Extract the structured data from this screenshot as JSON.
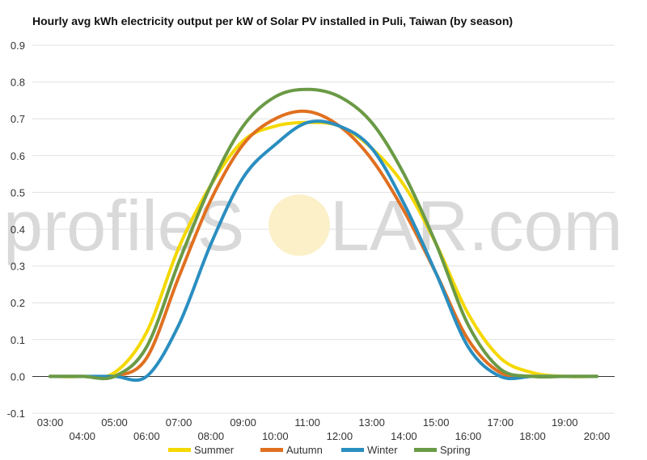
{
  "chart_data": {
    "type": "line",
    "title": "Hourly avg kWh electricity output per kW of Solar PV installed in Puli, Taiwan (by season)",
    "xlabel": "",
    "ylabel": "",
    "x": [
      "03:00",
      "04:00",
      "05:00",
      "06:00",
      "07:00",
      "08:00",
      "09:00",
      "10:00",
      "11:00",
      "12:00",
      "13:00",
      "14:00",
      "15:00",
      "16:00",
      "17:00",
      "18:00",
      "19:00",
      "20:00"
    ],
    "y_ticks": [
      -0.1,
      0.0,
      0.1,
      0.2,
      0.3,
      0.4,
      0.5,
      0.6,
      0.7,
      0.8,
      0.9
    ],
    "ylim": [
      -0.1,
      0.9
    ],
    "grid": true,
    "legend_position": "bottom",
    "series": [
      {
        "name": "Summer",
        "color": "#f5d800",
        "values": [
          0.0,
          0.0,
          0.01,
          0.12,
          0.35,
          0.52,
          0.64,
          0.68,
          0.69,
          0.68,
          0.62,
          0.52,
          0.36,
          0.17,
          0.05,
          0.01,
          0.0,
          0.0
        ]
      },
      {
        "name": "Autumn",
        "color": "#e07020",
        "values": [
          0.0,
          0.0,
          0.0,
          0.05,
          0.27,
          0.48,
          0.63,
          0.7,
          0.72,
          0.68,
          0.59,
          0.45,
          0.28,
          0.1,
          0.01,
          0.0,
          0.0,
          0.0
        ]
      },
      {
        "name": "Winter",
        "color": "#2a8ec0",
        "values": [
          0.0,
          0.0,
          0.0,
          0.0,
          0.14,
          0.36,
          0.54,
          0.63,
          0.69,
          0.68,
          0.62,
          0.47,
          0.28,
          0.08,
          0.0,
          0.0,
          0.0,
          0.0
        ]
      },
      {
        "name": "Spring",
        "color": "#6a9a45",
        "values": [
          0.0,
          0.0,
          0.0,
          0.08,
          0.31,
          0.52,
          0.68,
          0.76,
          0.78,
          0.76,
          0.69,
          0.55,
          0.36,
          0.14,
          0.02,
          0.0,
          0.0,
          0.0
        ]
      }
    ]
  },
  "watermark": {
    "part1": "profileS",
    "part2": "LAR.com"
  }
}
